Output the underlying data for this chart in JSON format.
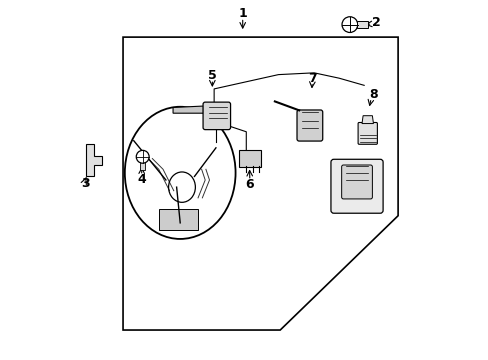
{
  "background_color": "#ffffff",
  "line_color": "#000000",
  "fig_width": 4.89,
  "fig_height": 3.6,
  "dpi": 100,
  "label_fontsize": 9,
  "label_fontweight": "bold"
}
